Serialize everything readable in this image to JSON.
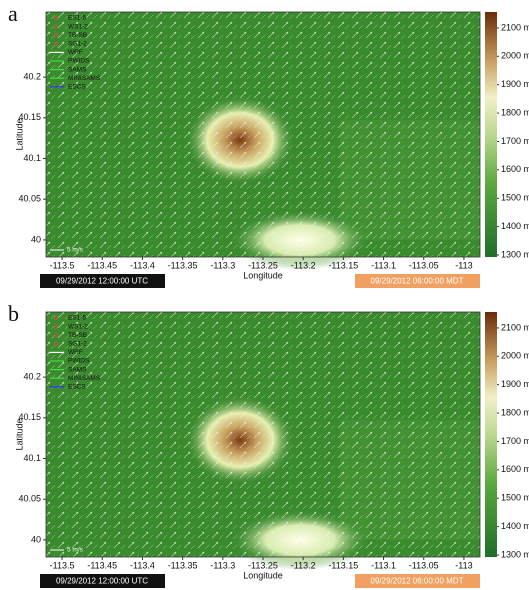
{
  "chart_data": [
    {
      "type": "map",
      "panel_label": "a",
      "xlabel": "Longitude",
      "ylabel": "Latitude",
      "xlim": [
        -113.52,
        -112.98
      ],
      "xticks": [
        -113.5,
        -113.45,
        -113.4,
        -113.35,
        -113.3,
        -113.25,
        -113.2,
        -113.15,
        -113.1,
        -113.05,
        -113
      ],
      "ylim": [
        39.979,
        40.28
      ],
      "yticks": [
        40,
        40.05,
        40.1,
        40.15,
        40.2
      ],
      "clim": [
        1293,
        2156
      ],
      "cticks": [
        {
          "value": 1300,
          "label": "1300 m"
        },
        {
          "value": 1400,
          "label": "1400 m"
        },
        {
          "value": 1500,
          "label": "1500 m"
        },
        {
          "value": 1600,
          "label": "1600 m"
        },
        {
          "value": 1700,
          "label": "1700 m"
        },
        {
          "value": 1800,
          "label": "1800 m"
        },
        {
          "value": 1900,
          "label": "1900 m"
        },
        {
          "value": 2000,
          "label": "2000 m"
        },
        {
          "value": 2100,
          "label": "2100 m"
        }
      ],
      "legend": [
        {
          "name": "ES1-5",
          "color": "#e05050"
        },
        {
          "name": "WS1-2",
          "color": "#e05050"
        },
        {
          "name": "TB-SB",
          "color": "#e05050"
        },
        {
          "name": "SG1-2",
          "color": "#e05050"
        },
        {
          "name": "WRF",
          "color": "#ffffff"
        },
        {
          "name": "PWIDS",
          "color": "#40e040"
        },
        {
          "name": "SAMS",
          "color": "#40e040"
        },
        {
          "name": "MINISAMS",
          "color": "#40e040"
        },
        {
          "name": "ESCS",
          "color": "#3030ff"
        }
      ],
      "scale_label": "5 m/s",
      "time_utc": "09/29/2012 12:00:00 UTC",
      "time_local": "09/29/2012 06:00:00 MDT"
    },
    {
      "type": "map",
      "panel_label": "b",
      "xlabel": "Longitude",
      "ylabel": "Latitude",
      "xlim": [
        -113.52,
        -112.98
      ],
      "xticks": [
        -113.5,
        -113.45,
        -113.4,
        -113.35,
        -113.3,
        -113.25,
        -113.2,
        -113.15,
        -113.1,
        -113.05,
        -113
      ],
      "ylim": [
        39.979,
        40.28
      ],
      "yticks": [
        40,
        40.05,
        40.1,
        40.15,
        40.2
      ],
      "clim": [
        1293,
        2156
      ],
      "cticks": [
        {
          "value": 1300,
          "label": "1300 m"
        },
        {
          "value": 1400,
          "label": "1400 m"
        },
        {
          "value": 1500,
          "label": "1500 m"
        },
        {
          "value": 1600,
          "label": "1600 m"
        },
        {
          "value": 1700,
          "label": "1700 m"
        },
        {
          "value": 1800,
          "label": "1800 m"
        },
        {
          "value": 1900,
          "label": "1900 m"
        },
        {
          "value": 2000,
          "label": "2000 m"
        },
        {
          "value": 2100,
          "label": "2100 m"
        }
      ],
      "legend": [
        {
          "name": "ES1-5",
          "color": "#e05050"
        },
        {
          "name": "WS1-2",
          "color": "#e05050"
        },
        {
          "name": "TB-SB",
          "color": "#e05050"
        },
        {
          "name": "SG1-2",
          "color": "#e05050"
        },
        {
          "name": "WRF",
          "color": "#ffffff"
        },
        {
          "name": "PWIDS",
          "color": "#40e040"
        },
        {
          "name": "SAMS",
          "color": "#40e040"
        },
        {
          "name": "MINISAMS",
          "color": "#40e040"
        },
        {
          "name": "ESCS",
          "color": "#3030ff"
        }
      ],
      "scale_label": "5 m/s",
      "time_utc": "09/29/2012 12:00:00 UTC",
      "time_local": "09/29/2012 06:00:00 MDT"
    }
  ]
}
